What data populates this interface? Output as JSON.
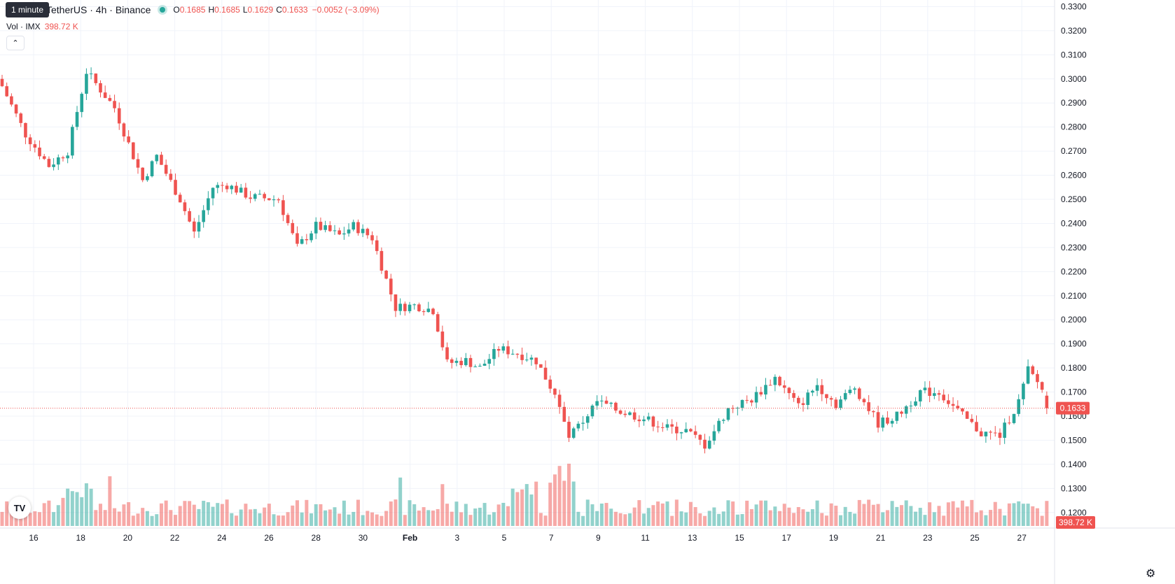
{
  "header": {
    "tooltip": "1 minute",
    "symbol": "IMX / TetherUS · 4h · Binance",
    "visible_symbol": "TetherUS · 4h · Binance",
    "open_label": "O",
    "open": "0.1685",
    "high_label": "H",
    "high": "0.1685",
    "low_label": "L",
    "low": "0.1629",
    "close_label": "C",
    "close": "0.1633",
    "change": "−0.0052 (−3.09%)",
    "vol_label": "Vol · IMX",
    "vol_value": "398.72 K",
    "collapse_icon": "chevron-up-icon"
  },
  "price_label": "0.1633",
  "volume_label": "398.72 K",
  "logo_text": "TV",
  "colors": {
    "up": "#26a69a",
    "down": "#ef5350",
    "grid": "#f0f3fa",
    "axis_text": "#131722"
  },
  "chart_data": {
    "type": "candlestick",
    "interval": "4h",
    "y_ticks": [
      "0.1200",
      "0.1300",
      "0.1400",
      "0.1500",
      "0.1600",
      "0.1700",
      "0.1800",
      "0.1900",
      "0.2000",
      "0.2100",
      "0.2200",
      "0.2300",
      "0.2400",
      "0.2500",
      "0.2600",
      "0.2700",
      "0.2800",
      "0.2900",
      "0.3000",
      "0.3100",
      "0.3200",
      "0.3300"
    ],
    "ylim": [
      0.115,
      0.331
    ],
    "x_ticks": [
      "16",
      "18",
      "20",
      "22",
      "24",
      "26",
      "28",
      "30",
      "Feb",
      "3",
      "5",
      "7",
      "9",
      "11",
      "13",
      "15",
      "17",
      "19",
      "21",
      "23",
      "25",
      "27"
    ],
    "last_price": 0.1633,
    "anchors": [
      {
        "i": 0,
        "p": 0.297
      },
      {
        "i": 5,
        "p": 0.277
      },
      {
        "i": 10,
        "p": 0.264
      },
      {
        "i": 14,
        "p": 0.27
      },
      {
        "i": 18,
        "p": 0.303
      },
      {
        "i": 24,
        "p": 0.288
      },
      {
        "i": 30,
        "p": 0.258
      },
      {
        "i": 33,
        "p": 0.268
      },
      {
        "i": 38,
        "p": 0.25
      },
      {
        "i": 41,
        "p": 0.236
      },
      {
        "i": 45,
        "p": 0.255
      },
      {
        "i": 48,
        "p": 0.256
      },
      {
        "i": 53,
        "p": 0.251
      },
      {
        "i": 59,
        "p": 0.25
      },
      {
        "i": 63,
        "p": 0.23
      },
      {
        "i": 67,
        "p": 0.239
      },
      {
        "i": 72,
        "p": 0.235
      },
      {
        "i": 75,
        "p": 0.239
      },
      {
        "i": 79,
        "p": 0.234
      },
      {
        "i": 84,
        "p": 0.205
      },
      {
        "i": 88,
        "p": 0.206
      },
      {
        "i": 92,
        "p": 0.204
      },
      {
        "i": 95,
        "p": 0.182
      },
      {
        "i": 99,
        "p": 0.183
      },
      {
        "i": 102,
        "p": 0.18
      },
      {
        "i": 106,
        "p": 0.188
      },
      {
        "i": 110,
        "p": 0.186
      },
      {
        "i": 114,
        "p": 0.183
      },
      {
        "i": 118,
        "p": 0.169
      },
      {
        "i": 121,
        "p": 0.151
      },
      {
        "i": 124,
        "p": 0.158
      },
      {
        "i": 127,
        "p": 0.166
      },
      {
        "i": 132,
        "p": 0.162
      },
      {
        "i": 137,
        "p": 0.159
      },
      {
        "i": 142,
        "p": 0.155
      },
      {
        "i": 146,
        "p": 0.154
      },
      {
        "i": 150,
        "p": 0.148
      },
      {
        "i": 155,
        "p": 0.163
      },
      {
        "i": 160,
        "p": 0.167
      },
      {
        "i": 165,
        "p": 0.176
      },
      {
        "i": 170,
        "p": 0.164
      },
      {
        "i": 174,
        "p": 0.173
      },
      {
        "i": 178,
        "p": 0.165
      },
      {
        "i": 182,
        "p": 0.172
      },
      {
        "i": 187,
        "p": 0.157
      },
      {
        "i": 191,
        "p": 0.16
      },
      {
        "i": 196,
        "p": 0.17
      },
      {
        "i": 200,
        "p": 0.17
      },
      {
        "i": 205,
        "p": 0.16
      },
      {
        "i": 209,
        "p": 0.153
      },
      {
        "i": 213,
        "p": 0.152
      },
      {
        "i": 217,
        "p": 0.166
      },
      {
        "i": 219,
        "p": 0.179
      },
      {
        "i": 223,
        "p": 0.169
      }
    ],
    "volume": {
      "max_label": "398.72 K"
    }
  }
}
